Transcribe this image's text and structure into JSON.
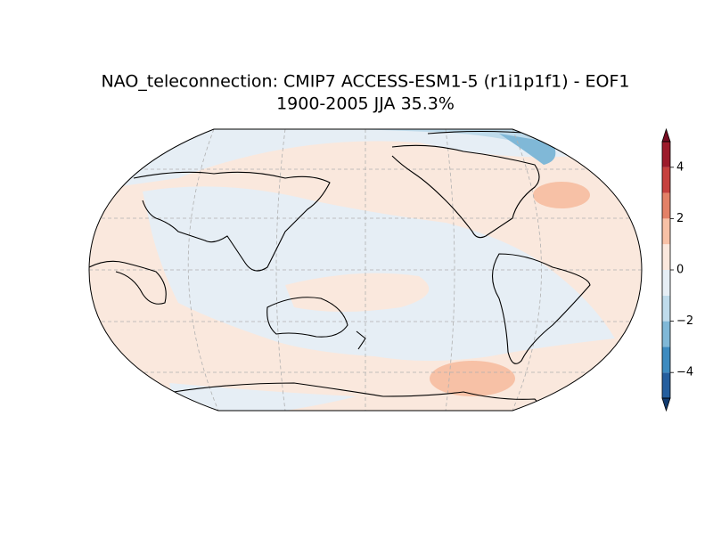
{
  "chart_data": {
    "type": "map",
    "title": "NAO_teleconnection: CMIP7 ACCESS-ESM1-5 (r1i1p1f1) - EOF1",
    "subtitle": "1900-2005 JJA 35.3%",
    "colorbar": {
      "lim": [
        -5,
        5
      ],
      "levels": [
        -5,
        -4,
        -3,
        -2,
        -1,
        0,
        1,
        2,
        3,
        4,
        5
      ],
      "colors": [
        "#245e9e",
        "#3d8bc0",
        "#80b8d7",
        "#bfdbeb",
        "#e6eef5",
        "#fae8dd",
        "#f7c1a6",
        "#e38167",
        "#c6413e",
        "#9c1b2b"
      ],
      "extend": "both",
      "under_color": "#123b6f",
      "over_color": "#760c22",
      "ticks": [
        {
          "value": -4,
          "label": "−4"
        },
        {
          "value": -2,
          "label": "−2"
        },
        0,
        2,
        4
      ]
    }
  }
}
